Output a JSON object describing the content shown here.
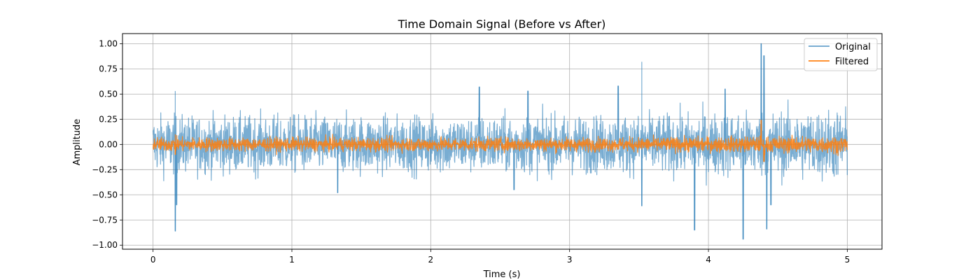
{
  "chart_data": {
    "type": "line",
    "title": "Time Domain Signal (Before vs After)",
    "xlabel": "Time (s)",
    "ylabel": "Amplitude",
    "xlim": [
      -0.22,
      5.25
    ],
    "ylim": [
      -1.04,
      1.1
    ],
    "xticks": [
      0,
      1,
      2,
      3,
      4,
      5
    ],
    "xtick_labels": [
      "0",
      "1",
      "2",
      "3",
      "4",
      "5"
    ],
    "yticks": [
      -1.0,
      -0.75,
      -0.5,
      -0.25,
      0.0,
      0.25,
      0.5,
      0.75,
      1.0
    ],
    "ytick_labels": [
      "−1.00",
      "−0.75",
      "−0.50",
      "−0.25",
      "0.00",
      "0.25",
      "0.50",
      "0.75",
      "1.00"
    ],
    "grid": true,
    "legend": "top-right",
    "series": [
      {
        "name": "Original",
        "color": "#1f77b4",
        "opacity": 0.6,
        "x_range": [
          0,
          5
        ],
        "typical_amplitude": [
          -0.3,
          0.35
        ],
        "peaks": [
          {
            "x": 0.16,
            "value": 0.53
          },
          {
            "x": 0.16,
            "value": -0.86
          },
          {
            "x": 0.17,
            "value": -0.6
          },
          {
            "x": 1.33,
            "value": -0.48
          },
          {
            "x": 2.35,
            "value": 0.57
          },
          {
            "x": 2.6,
            "value": -0.45
          },
          {
            "x": 2.7,
            "value": 0.53
          },
          {
            "x": 3.35,
            "value": 0.58
          },
          {
            "x": 3.52,
            "value": 0.82
          },
          {
            "x": 3.52,
            "value": -0.61
          },
          {
            "x": 3.9,
            "value": -0.85
          },
          {
            "x": 4.12,
            "value": 0.55
          },
          {
            "x": 4.25,
            "value": -0.94
          },
          {
            "x": 4.38,
            "value": 1.0
          },
          {
            "x": 4.4,
            "value": 0.88
          },
          {
            "x": 4.42,
            "value": -0.84
          },
          {
            "x": 4.45,
            "value": -0.6
          }
        ]
      },
      {
        "name": "Filtered",
        "color": "#ff7f0e",
        "opacity": 0.85,
        "x_range": [
          0,
          5
        ],
        "typical_amplitude": [
          -0.08,
          0.08
        ],
        "peaks": [
          {
            "x": 4.38,
            "value": 0.24
          },
          {
            "x": 4.4,
            "value": -0.17
          },
          {
            "x": 0.16,
            "value": 0.1
          },
          {
            "x": 0.16,
            "value": -0.1
          }
        ]
      }
    ]
  }
}
